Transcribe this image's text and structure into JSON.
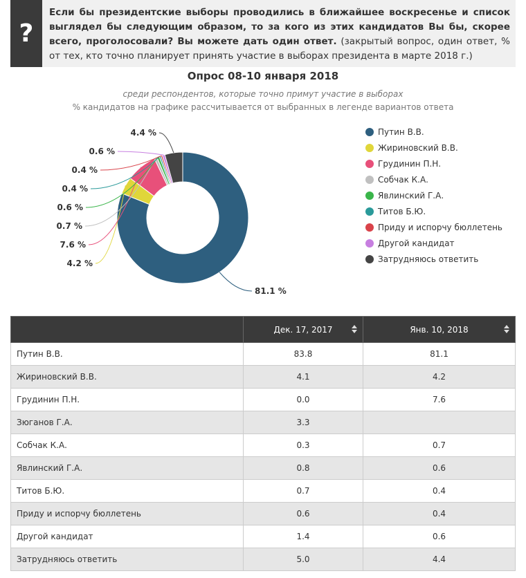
{
  "header": {
    "icon": "?",
    "question": "Если бы президентские выборы проводились в ближайшее воскресенье и список выглядел бы следующим образом, то за кого из этих кандидатов Вы бы, скорее всего, проголосовали? Вы можете дать один ответ.",
    "note": "(закрытый вопрос, один ответ, % от тех, кто точно планирует принять участие в выборах президента в марте 2018 г.)"
  },
  "chart_data": {
    "type": "pie",
    "donut": true,
    "title": "Опрос 08-10 января 2018",
    "subtitle": "среди респондентов, которые точно примут участие в выборах",
    "subtitle2": "% кандидатов на графике рассчитывается от выбранных в легенде вариантов ответа",
    "categories": [
      "Путин В.В.",
      "Жириновский В.В.",
      "Грудинин П.Н.",
      "Собчак К.А.",
      "Явлинский Г.А.",
      "Титов Б.Ю.",
      "Приду и испорчу бюллетень",
      "Другой кандидат",
      "Затрудняюсь ответить"
    ],
    "values": [
      81.1,
      4.2,
      7.6,
      0.7,
      0.6,
      0.4,
      0.4,
      0.6,
      4.4
    ],
    "value_labels": [
      "81.1 %",
      "4.2 %",
      "7.6 %",
      "0.7 %",
      "0.6 %",
      "0.4 %",
      "0.4 %",
      "0.6 %",
      "4.4 %"
    ],
    "colors": [
      "#2e5f7f",
      "#e0d63a",
      "#e8507a",
      "#c0c0c0",
      "#3ab54a",
      "#2a9a9a",
      "#d9434a",
      "#c77fe0",
      "#444444"
    ],
    "legend": "right"
  },
  "table": {
    "columns": [
      "Дек. 17, 2017",
      "Янв. 10, 2018"
    ],
    "rows": [
      [
        "Путин В.В.",
        "83.8",
        "81.1"
      ],
      [
        "Жириновский В.В.",
        "4.1",
        "4.2"
      ],
      [
        "Грудинин П.Н.",
        "0.0",
        "7.6"
      ],
      [
        "Зюганов Г.А.",
        "3.3",
        null
      ],
      [
        "Собчак К.А.",
        "0.3",
        "0.7"
      ],
      [
        "Явлинский Г.А.",
        "0.8",
        "0.6"
      ],
      [
        "Титов Б.Ю.",
        "0.7",
        "0.4"
      ],
      [
        "Приду и испорчу бюллетень",
        "0.6",
        "0.4"
      ],
      [
        "Другой кандидат",
        "1.4",
        "0.6"
      ],
      [
        "Затрудняюсь ответить",
        "5.0",
        "4.4"
      ]
    ]
  }
}
